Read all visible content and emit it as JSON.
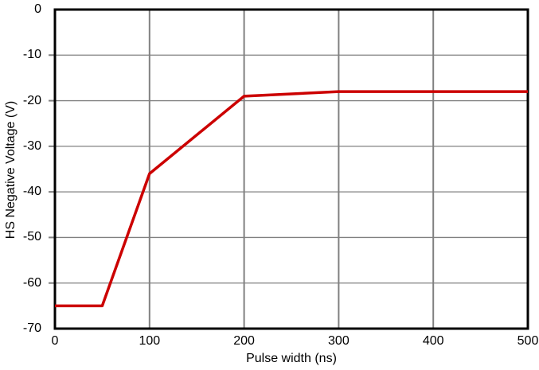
{
  "chart_data": {
    "type": "line",
    "title": "",
    "xlabel": "Pulse width (ns)",
    "ylabel": "HS Negative Voltage (V)",
    "xlim": [
      0,
      500
    ],
    "ylim": [
      -70,
      0
    ],
    "x_ticks": [
      0,
      100,
      200,
      300,
      400,
      500
    ],
    "y_ticks": [
      0,
      -10,
      -20,
      -30,
      -40,
      -50,
      -60,
      -70
    ],
    "grid": true,
    "legend": false,
    "series": [
      {
        "name": "HS negative voltage",
        "color": "#cc0000",
        "x": [
          0,
          50,
          100,
          200,
          300,
          400,
          500
        ],
        "y": [
          -65,
          -65,
          -36,
          -19,
          -18,
          -18,
          -18
        ]
      }
    ]
  },
  "colors": {
    "line": "#cc0000",
    "grid": "#808080",
    "axis": "#000000",
    "background": "#ffffff",
    "text": "#000000"
  }
}
